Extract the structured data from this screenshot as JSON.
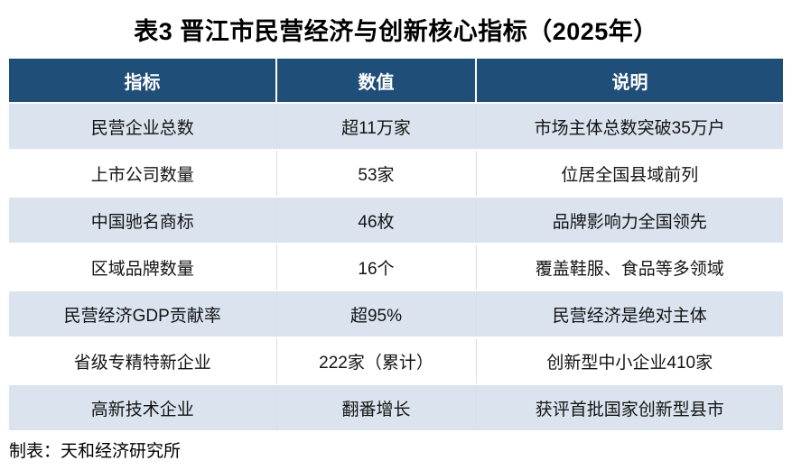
{
  "title": "表3  晋江市民营经济与创新核心指标（2025年）",
  "footer": {
    "credit": "制表：天和经济研究所"
  },
  "colors": {
    "header_bg": "#1F4E79",
    "header_text": "#FFFFFF",
    "row_alt_bg": "#DAE3EE",
    "row_bg": "#FFFFFF",
    "body_text": "#141414"
  },
  "table": {
    "headers": [
      "指标",
      "数值",
      "说明"
    ],
    "rows": [
      [
        "民营企业总数",
        "超11万家",
        "市场主体总数突破35万户"
      ],
      [
        "上市公司数量",
        "53家",
        "位居全国县域前列"
      ],
      [
        "中国驰名商标",
        "46枚",
        "品牌影响力全国领先"
      ],
      [
        "区域品牌数量",
        "16个",
        "覆盖鞋服、食品等多领域"
      ],
      [
        "民营经济GDP贡献率",
        "超95%",
        "民营经济是绝对主体"
      ],
      [
        "省级专精特新企业",
        "222家（累计）",
        "创新型中小企业410家"
      ],
      [
        "高新技术企业",
        "翻番增长",
        "获评首批国家创新型县市"
      ]
    ]
  },
  "chart_data": {
    "type": "table",
    "title": "表3  晋江市民营经济与创新核心指标（2025年）",
    "columns": [
      "指标",
      "数值",
      "说明"
    ],
    "rows": [
      {
        "指标": "民营企业总数",
        "数值": "超11万家",
        "说明": "市场主体总数突破35万户"
      },
      {
        "指标": "上市公司数量",
        "数值": "53家",
        "说明": "位居全国县域前列"
      },
      {
        "指标": "中国驰名商标",
        "数值": "46枚",
        "说明": "品牌影响力全国领先"
      },
      {
        "指标": "区域品牌数量",
        "数值": "16个",
        "说明": "覆盖鞋服、食品等多领域"
      },
      {
        "指标": "民营经济GDP贡献率",
        "数值": "超95%",
        "说明": "民营经济是绝对主体"
      },
      {
        "指标": "省级专精特新企业",
        "数值": "222家（累计）",
        "说明": "创新型中小企业410家"
      },
      {
        "指标": "高新技术企业",
        "数值": "翻番增长",
        "说明": "获评首批国家创新型县市"
      }
    ],
    "source_credit": "制表：天和经济研究所",
    "layout": {
      "header_style": "dark-blue banded",
      "row_banding": "alternating light-blue/white",
      "alignment": "center"
    }
  }
}
